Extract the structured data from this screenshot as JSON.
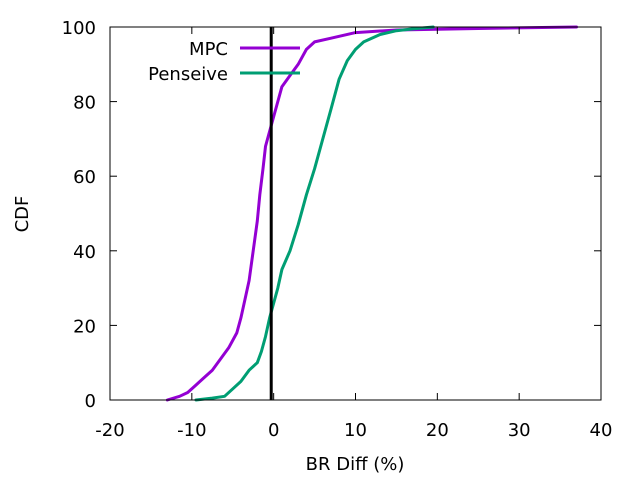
{
  "chart_data": {
    "type": "line",
    "xlabel": "BR Diff (%)",
    "ylabel": "CDF",
    "xlim": [
      -20,
      40
    ],
    "ylim": [
      0,
      100
    ],
    "x_ticks": [
      -20,
      -10,
      0,
      10,
      20,
      30,
      40
    ],
    "y_ticks": [
      0,
      20,
      40,
      60,
      80,
      100
    ],
    "x_tick_labels": [
      "-20",
      "-10",
      "0",
      "10",
      "20",
      "30",
      "40"
    ],
    "y_tick_labels": [
      "0",
      "20",
      "40",
      "60",
      "80",
      "100"
    ],
    "grid": false,
    "legend_position": "top-left",
    "reference_line_x": -0.3,
    "series": [
      {
        "name": "MPC",
        "color": "#9400d3",
        "points": [
          [
            -13,
            0
          ],
          [
            -11.5,
            1
          ],
          [
            -10.5,
            2
          ],
          [
            -9.5,
            4
          ],
          [
            -8.5,
            6
          ],
          [
            -7.5,
            8
          ],
          [
            -6.5,
            11
          ],
          [
            -5.5,
            14
          ],
          [
            -4.5,
            18
          ],
          [
            -4,
            22
          ],
          [
            -3.5,
            27
          ],
          [
            -3,
            32
          ],
          [
            -2.5,
            40
          ],
          [
            -2,
            48
          ],
          [
            -1.7,
            55
          ],
          [
            -1.3,
            62
          ],
          [
            -1,
            68
          ],
          [
            -0.5,
            72
          ],
          [
            0,
            76
          ],
          [
            0.5,
            80
          ],
          [
            1,
            84
          ],
          [
            2,
            87
          ],
          [
            3,
            90
          ],
          [
            4,
            94
          ],
          [
            5,
            96
          ],
          [
            7,
            97
          ],
          [
            10,
            98.5
          ],
          [
            15,
            99.2
          ],
          [
            25,
            99.6
          ],
          [
            37,
            100
          ]
        ]
      },
      {
        "name": "Penseive",
        "color": "#009e73",
        "points": [
          [
            -9.5,
            0
          ],
          [
            -7.5,
            0.5
          ],
          [
            -6,
            1
          ],
          [
            -5,
            3
          ],
          [
            -4,
            5
          ],
          [
            -3,
            8
          ],
          [
            -2,
            10
          ],
          [
            -1.5,
            13
          ],
          [
            -1,
            17
          ],
          [
            -0.5,
            22
          ],
          [
            0,
            26
          ],
          [
            0.5,
            30
          ],
          [
            1,
            35
          ],
          [
            2,
            40
          ],
          [
            3,
            47
          ],
          [
            4,
            55
          ],
          [
            5,
            62
          ],
          [
            6,
            70
          ],
          [
            7,
            78
          ],
          [
            8,
            86
          ],
          [
            9,
            91
          ],
          [
            10,
            94
          ],
          [
            11,
            96
          ],
          [
            13,
            98
          ],
          [
            15,
            99
          ],
          [
            17,
            99.5
          ],
          [
            19.5,
            100
          ]
        ]
      }
    ]
  }
}
